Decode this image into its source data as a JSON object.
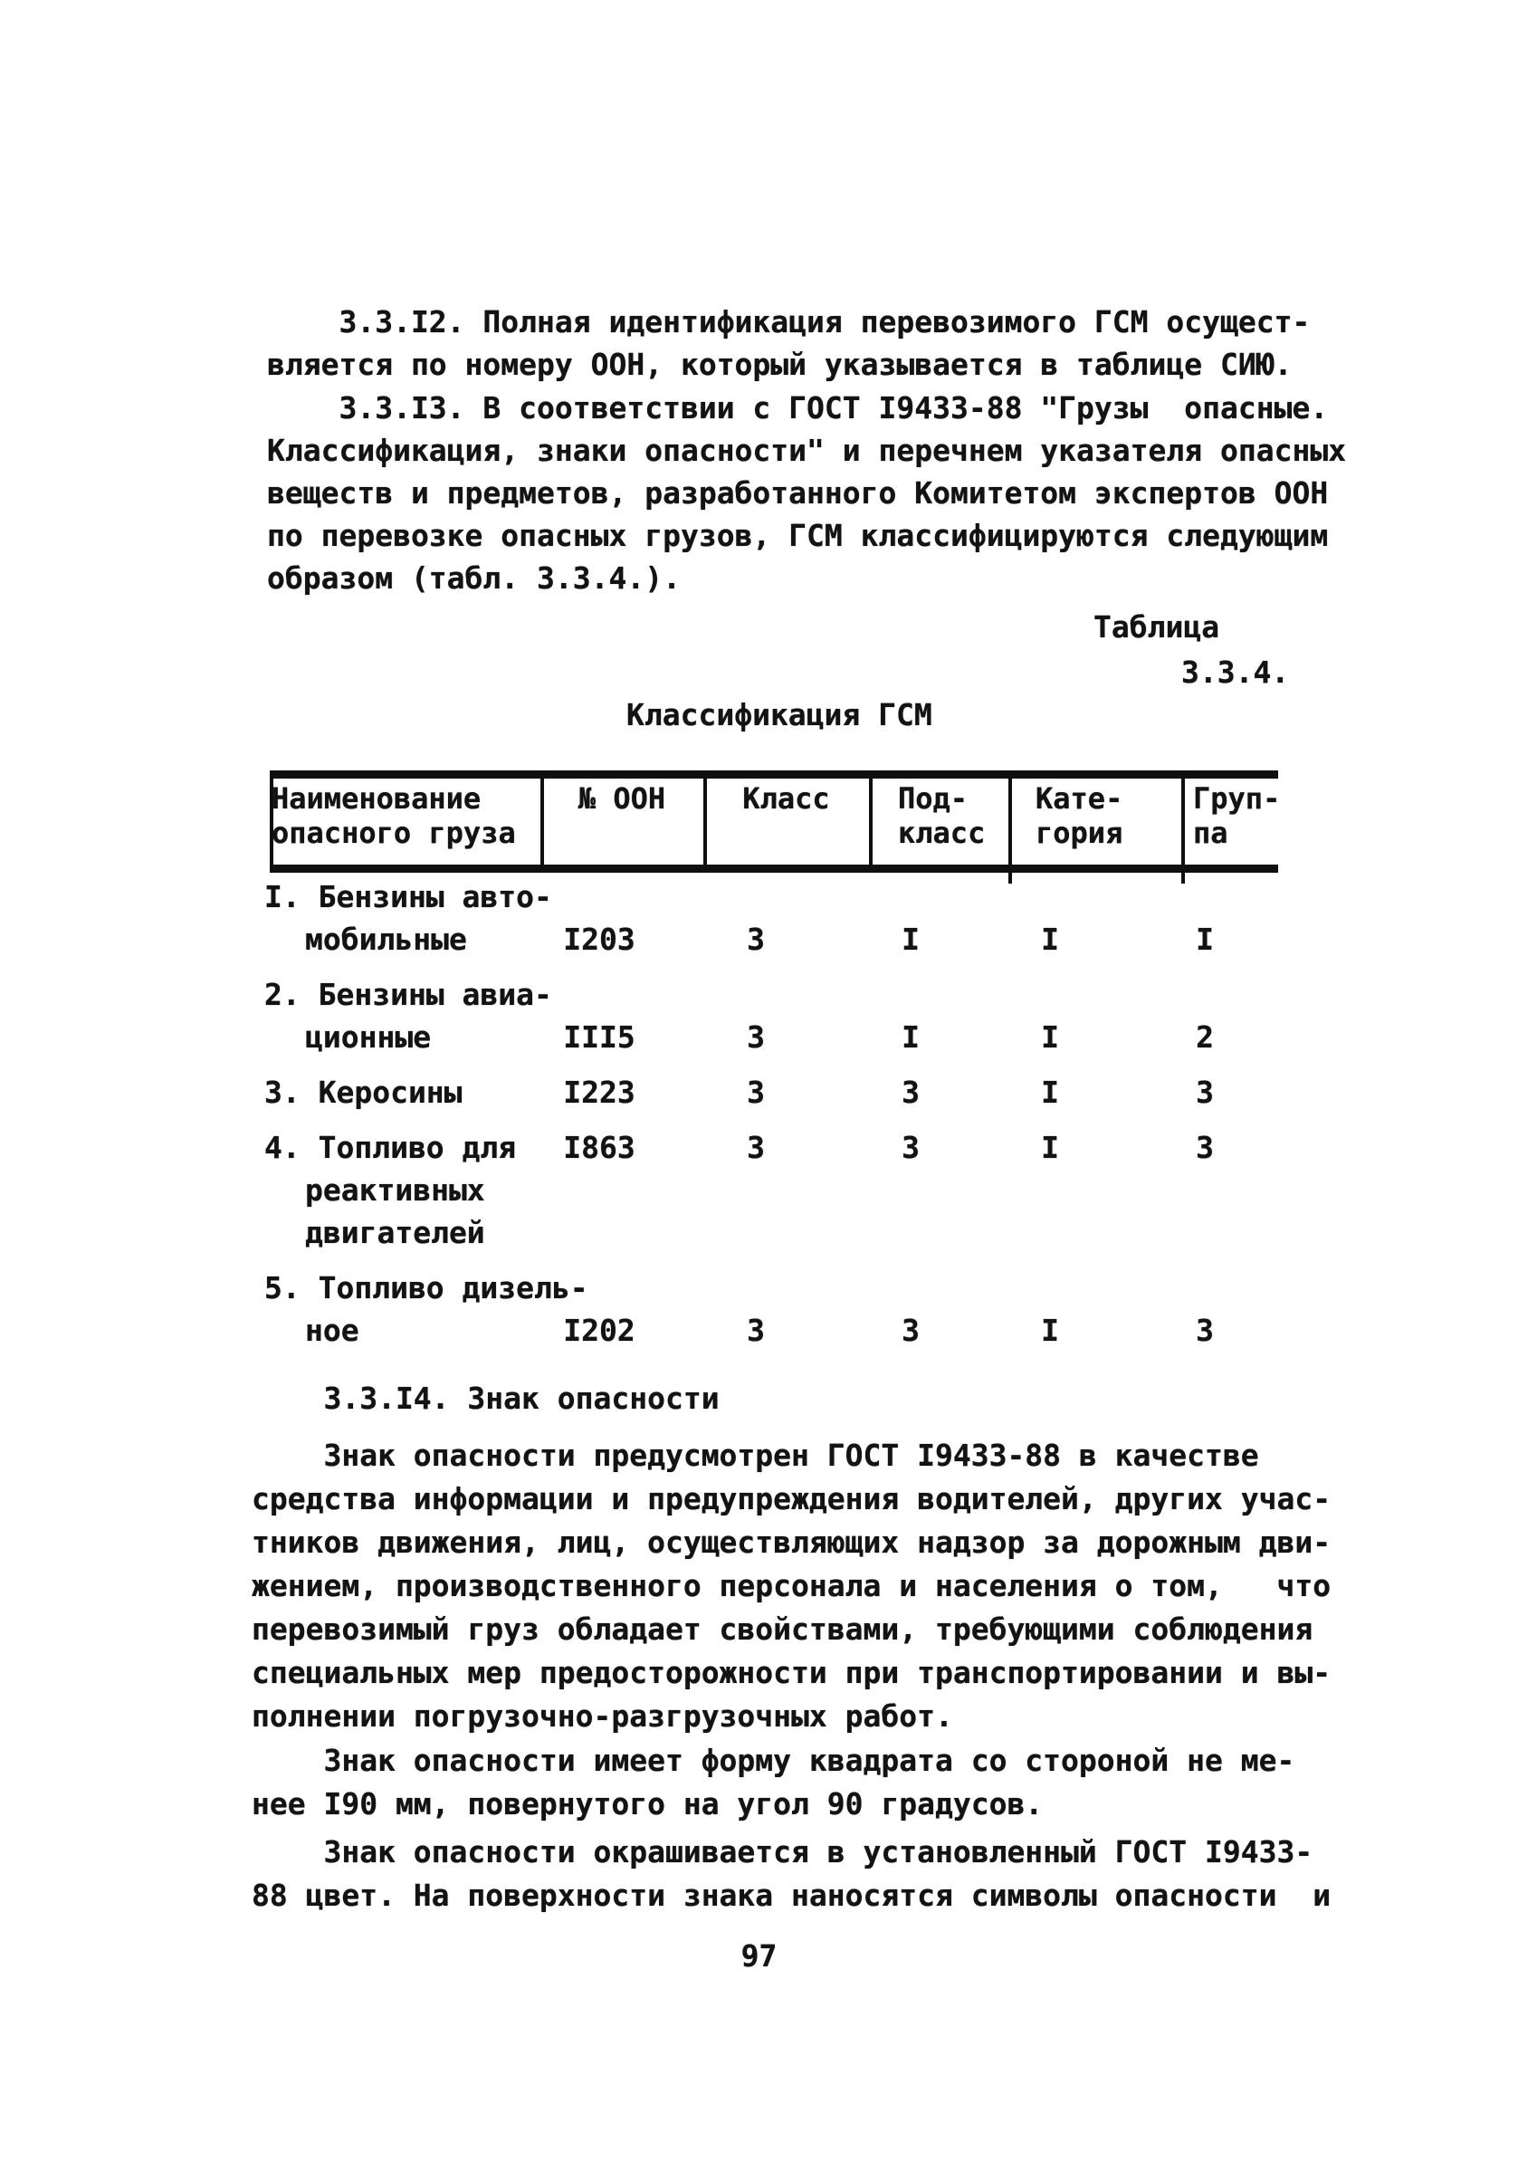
{
  "colors": {
    "ink": "#131313",
    "paper": "#ffffff"
  },
  "page": {
    "number": "97"
  },
  "sections": {
    "p312": {
      "lines": [
        "    3.3.I2. Полная идентификация перевозимого ГСМ осущест-",
        "вляется по номеру ООН, который указывается в таблице СИЮ."
      ]
    },
    "p313": {
      "lines": [
        "    3.3.I3. В соответствии с ГОСТ I9433-88 \"Грузы  опасные.",
        "Классификация, знаки опасности\" и перечнем указателя опасных",
        "веществ и предметов, разработанного Комитетом экспертов ООН",
        "по перевозке опасных грузов, ГСМ классифицируются следующим",
        "образом (табл. 3.3.4.)."
      ]
    },
    "table_caption": {
      "label": "Таблица",
      "number": "3.3.4."
    },
    "table_title": "Классификация ГСМ",
    "h314": {
      "lines": [
        "    3.3.I4. Знак опасности"
      ]
    },
    "p_sign1": {
      "lines": [
        "    Знак опасности предусмотрен ГОСТ I9433-88 в качестве",
        "средства информации и предупреждения водителей, других учас-",
        "тников движения, лиц, осуществляющих надзор за дорожным дви-",
        "жением, производственного персонала и населения о том,   что",
        "перевозимый груз обладает свойствами, требующими соблюдения",
        "специальных мер предосторожности при транспортировании и вы-",
        "полнении погрузочно-разгрузочных работ."
      ]
    },
    "p_sign2": {
      "lines": [
        "    Знак опасности имеет форму квадрата со стороной не ме-",
        "нее I90 мм, повернутого на угол 90 градусов."
      ]
    },
    "p_sign3": {
      "lines": [
        "    Знак опасности окрашивается в установленный ГОСТ I9433-",
        "88 цвет. На поверхности знака наносятся символы опасности  и"
      ]
    }
  },
  "table": {
    "headers": [
      {
        "lines": [
          "Наименование",
          "опасного груза"
        ]
      },
      {
        "lines": [
          "№ ООН"
        ]
      },
      {
        "lines": [
          "Класс"
        ]
      },
      {
        "lines": [
          "Под-",
          "класс"
        ]
      },
      {
        "lines": [
          "Кате-",
          "гория"
        ]
      },
      {
        "lines": [
          "Груп-",
          "па"
        ]
      }
    ],
    "rows": [
      {
        "lines": [
          {
            "name": "I. Бензины авто-"
          },
          {
            "name": "мобильные",
            "indent": true,
            "un": "I203",
            "cls": "3",
            "sub": "I",
            "cat": "I",
            "grp": "I"
          }
        ]
      },
      {
        "lines": [
          {
            "name": "2. Бензины авиа-"
          },
          {
            "name": "ционные",
            "indent": true,
            "un": "III5",
            "cls": "3",
            "sub": "I",
            "cat": "I",
            "grp": "2"
          }
        ]
      },
      {
        "lines": [
          {
            "name": "3. Керосины",
            "un": "I223",
            "cls": "3",
            "sub": "3",
            "cat": "I",
            "grp": "3"
          }
        ]
      },
      {
        "lines": [
          {
            "name": "4. Топливо для",
            "un": "I863",
            "cls": "3",
            "sub": "3",
            "cat": "I",
            "grp": "3"
          },
          {
            "name": "реактивных",
            "indent": true
          },
          {
            "name": "двигателей",
            "indent": true
          }
        ]
      },
      {
        "lines": [
          {
            "name": "5. Топливо дизель-"
          },
          {
            "name": "ное",
            "indent": true,
            "un": "I202",
            "cls": "3",
            "sub": "3",
            "cat": "I",
            "grp": "3"
          }
        ]
      }
    ]
  }
}
